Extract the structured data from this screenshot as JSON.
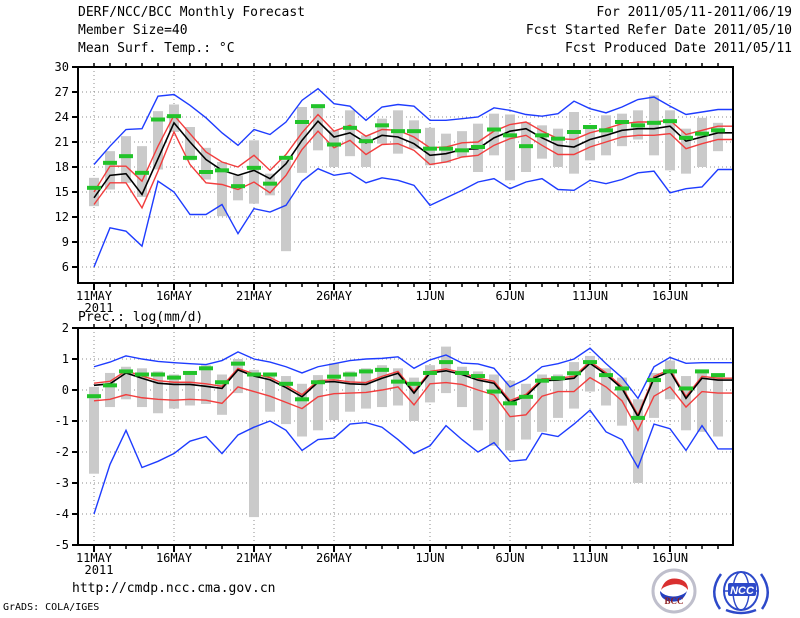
{
  "header": {
    "product_title": "DERF/NCC/BCC Monthly Forecast",
    "member_size": "Member Size=40",
    "valid_range": "For 2011/05/11-2011/06/19",
    "refer_date": "Fcst Started Refer Date 2011/05/10",
    "produced_date": "Fcst Produced Date 2011/05/11"
  },
  "footer": {
    "url": "http://cmdp.ncc.cma.gov.cn",
    "credit": "GrADS: COLA/IGES"
  },
  "logos": {
    "bcc": "BCC",
    "ncc": "NCC"
  },
  "colors": {
    "blue": "#1e3cff",
    "red": "#f23d3d",
    "black": "#000000",
    "green": "#22c32a",
    "bar": "#cacaca",
    "grid": "#8c8c8c"
  },
  "chart_data": [
    {
      "name": "mean-surface-temperature",
      "type": "line",
      "title": "Mean Surf. Temp.: °C",
      "days": 40,
      "year": "2011",
      "x_range_label": "11MAY2011 - 19JUN2011",
      "ylim": [
        30,
        4.08
      ],
      "yticks": [
        30,
        27,
        24,
        21,
        18,
        15,
        12,
        9,
        6
      ],
      "xticks": [
        {
          "pos": 0,
          "label": "11MAY"
        },
        {
          "pos": 5,
          "label": "16MAY"
        },
        {
          "pos": 10,
          "label": "21MAY"
        },
        {
          "pos": 15,
          "label": "26MAY"
        },
        {
          "pos": 21,
          "label": "1JUN"
        },
        {
          "pos": 26,
          "label": "6JUN"
        },
        {
          "pos": 31,
          "label": "11JUN"
        },
        {
          "pos": 36,
          "label": "16JUN"
        }
      ],
      "series": {
        "blue_upper": [
          18.3,
          20.5,
          22.5,
          22.6,
          26.5,
          26.7,
          25.4,
          23.9,
          22.1,
          20.6,
          22.5,
          21.9,
          23.4,
          26.0,
          27.4,
          25.6,
          25.3,
          23.6,
          25.2,
          25.5,
          25.3,
          23.6,
          23.6,
          23.8,
          24.0,
          25.1,
          24.8,
          24.3,
          24.1,
          24.4,
          25.9,
          25.0,
          24.5,
          25.2,
          26.1,
          26.4,
          25.3,
          24.3,
          24.6,
          24.9
        ],
        "red_upper": [
          15.0,
          18.1,
          18.1,
          16.3,
          20.5,
          24.2,
          22.0,
          19.8,
          18.6,
          18.0,
          19.4,
          17.6,
          19.5,
          22.1,
          24.3,
          22.3,
          23.0,
          21.7,
          22.5,
          22.4,
          21.6,
          20.3,
          20.4,
          20.9,
          21.0,
          22.3,
          23.1,
          23.4,
          22.3,
          21.4,
          21.3,
          22.1,
          22.6,
          23.2,
          23.4,
          23.4,
          23.6,
          21.9,
          22.4,
          22.9
        ],
        "mean_black": [
          14.3,
          17.0,
          17.2,
          14.7,
          19.0,
          23.3,
          21.0,
          18.9,
          17.6,
          17.0,
          17.6,
          16.6,
          18.4,
          21.2,
          23.5,
          21.6,
          22.1,
          20.9,
          21.8,
          21.6,
          20.8,
          19.4,
          19.6,
          20.1,
          20.2,
          21.5,
          22.3,
          22.6,
          21.5,
          20.6,
          20.4,
          21.3,
          21.8,
          22.4,
          22.6,
          22.6,
          22.9,
          21.1,
          21.6,
          22.1
        ],
        "red_lower": [
          13.5,
          16.1,
          16.1,
          13.1,
          17.5,
          22.2,
          18.3,
          16.1,
          15.9,
          15.3,
          16.2,
          14.9,
          17.0,
          20.1,
          22.3,
          20.3,
          21.2,
          19.5,
          20.7,
          20.8,
          20.0,
          18.3,
          18.6,
          19.2,
          19.4,
          20.6,
          21.4,
          21.8,
          20.6,
          19.5,
          19.5,
          20.4,
          21.0,
          21.6,
          21.8,
          21.8,
          22.0,
          20.2,
          20.8,
          21.3
        ],
        "blue_lower": [
          6.0,
          10.7,
          10.3,
          8.5,
          16.3,
          15.0,
          12.3,
          12.3,
          13.5,
          10.0,
          13.0,
          12.6,
          13.4,
          16.3,
          17.8,
          17.0,
          17.3,
          16.1,
          16.7,
          16.4,
          15.8,
          13.4,
          14.3,
          15.2,
          16.2,
          16.6,
          15.4,
          16.2,
          16.6,
          15.3,
          15.2,
          16.4,
          16.0,
          16.5,
          17.3,
          17.5,
          14.9,
          15.4,
          15.6,
          17.7
        ],
        "green_obs": [
          15.5,
          18.5,
          19.3,
          17.3,
          23.7,
          24.1,
          19.1,
          17.4,
          17.6,
          15.7,
          17.9,
          16.0,
          19.1,
          23.4,
          25.3,
          20.7,
          22.7,
          21.1,
          23.0,
          22.3,
          22.3,
          20.2,
          20.2,
          20.0,
          20.4,
          22.5,
          21.8,
          20.5,
          21.8,
          21.4,
          22.2,
          22.8,
          22.4,
          23.4,
          23.0,
          23.3,
          23.5,
          21.5,
          22.0,
          22.4
        ],
        "bar_hi": [
          16.7,
          19.9,
          21.7,
          20.5,
          24.7,
          25.5,
          22.8,
          20.3,
          18.6,
          17.0,
          21.2,
          17.2,
          18.8,
          25.2,
          25.5,
          22.4,
          24.8,
          21.8,
          23.8,
          24.8,
          23.6,
          22.7,
          22.0,
          22.3,
          23.2,
          24.4,
          24.3,
          23.4,
          23.0,
          22.6,
          24.6,
          22.8,
          24.2,
          24.4,
          24.8,
          26.6,
          24.8,
          22.6,
          23.9,
          23.3
        ],
        "bar_lo": [
          13.3,
          15.3,
          16.1,
          14.4,
          17.7,
          22.2,
          18.8,
          16.5,
          12.1,
          14.0,
          13.6,
          14.6,
          7.9,
          17.3,
          20.0,
          18.0,
          19.3,
          18.0,
          20.8,
          19.6,
          20.2,
          18.2,
          18.5,
          19.2,
          17.4,
          19.4,
          16.4,
          17.4,
          19.0,
          18.0,
          17.2,
          18.8,
          19.4,
          20.5,
          21.3,
          19.4,
          17.6,
          17.2,
          18.0,
          19.9
        ]
      }
    },
    {
      "name": "precipitation",
      "type": "line",
      "title": "Prec.: log(mm/d)",
      "days": 40,
      "year": "2011",
      "x_range_label": "11MAY2011 - 19JUN2011",
      "ylim": [
        2,
        -5
      ],
      "yticks": [
        2,
        1,
        0,
        -1,
        -2,
        -3,
        -4,
        -5
      ],
      "xticks": [
        {
          "pos": 0,
          "label": "11MAY"
        },
        {
          "pos": 5,
          "label": "16MAY"
        },
        {
          "pos": 10,
          "label": "21MAY"
        },
        {
          "pos": 15,
          "label": "26MAY"
        },
        {
          "pos": 21,
          "label": "1JUN"
        },
        {
          "pos": 26,
          "label": "6JUN"
        },
        {
          "pos": 31,
          "label": "11JUN"
        },
        {
          "pos": 36,
          "label": "16JUN"
        }
      ],
      "series": {
        "blue_upper": [
          0.75,
          0.9,
          1.1,
          1.0,
          0.92,
          0.88,
          0.85,
          0.82,
          0.95,
          1.23,
          1.0,
          0.9,
          0.75,
          0.55,
          0.75,
          0.85,
          0.95,
          1.0,
          1.02,
          1.07,
          0.7,
          0.97,
          1.13,
          0.87,
          0.84,
          0.7,
          0.1,
          0.35,
          0.75,
          0.85,
          1.0,
          1.35,
          0.85,
          0.4,
          -0.27,
          0.75,
          1.05,
          0.86,
          0.88,
          0.88
        ],
        "red_upper": [
          0.22,
          0.28,
          0.62,
          0.45,
          0.3,
          0.25,
          0.25,
          0.2,
          0.12,
          0.7,
          0.52,
          0.4,
          0.15,
          -0.15,
          0.3,
          0.33,
          0.26,
          0.24,
          0.44,
          0.6,
          -0.04,
          0.6,
          0.68,
          0.56,
          0.38,
          0.28,
          -0.34,
          -0.14,
          0.36,
          0.38,
          0.44,
          0.92,
          0.56,
          0.11,
          -0.8,
          0.44,
          0.66,
          -0.21,
          0.44,
          0.38
        ],
        "mean_black": [
          0.15,
          0.2,
          0.55,
          0.38,
          0.22,
          0.18,
          0.18,
          0.12,
          0.05,
          0.65,
          0.45,
          0.33,
          0.08,
          -0.22,
          0.25,
          0.27,
          0.2,
          0.18,
          0.38,
          0.54,
          -0.1,
          0.55,
          0.62,
          0.5,
          0.32,
          0.22,
          -0.4,
          -0.2,
          0.3,
          0.32,
          0.38,
          0.86,
          0.5,
          0.05,
          -0.86,
          0.38,
          0.6,
          -0.27,
          0.38,
          0.32
        ],
        "red_lower": [
          -0.35,
          -0.3,
          -0.15,
          -0.25,
          -0.3,
          -0.33,
          -0.3,
          -0.33,
          -0.43,
          0.1,
          -0.05,
          -0.2,
          -0.4,
          -0.6,
          -0.22,
          -0.12,
          -0.1,
          -0.08,
          0.0,
          0.1,
          -0.48,
          0.2,
          0.24,
          0.18,
          0.0,
          -0.16,
          -0.86,
          -0.8,
          -0.2,
          -0.05,
          -0.05,
          0.4,
          0.1,
          -0.35,
          -1.3,
          -0.2,
          0.1,
          -0.55,
          -0.05,
          -0.1
        ],
        "blue_lower": [
          -4.0,
          -2.4,
          -1.3,
          -2.5,
          -2.3,
          -2.05,
          -1.65,
          -1.5,
          -2.05,
          -1.45,
          -1.2,
          -1.0,
          -1.3,
          -1.95,
          -1.6,
          -1.55,
          -1.1,
          -1.05,
          -1.2,
          -1.6,
          -2.05,
          -1.8,
          -1.15,
          -1.6,
          -2.0,
          -1.7,
          -2.3,
          -2.25,
          -1.4,
          -1.5,
          -1.1,
          -0.65,
          -1.35,
          -1.6,
          -2.5,
          -1.1,
          -1.25,
          -1.95,
          -1.15,
          -1.9
        ],
        "green_obs": [
          -0.2,
          0.15,
          0.6,
          0.5,
          0.5,
          0.4,
          0.55,
          0.7,
          0.25,
          0.85,
          0.5,
          0.5,
          0.2,
          -0.3,
          0.25,
          0.43,
          0.5,
          0.6,
          0.65,
          0.27,
          0.2,
          0.55,
          0.9,
          0.55,
          0.45,
          -0.05,
          -0.43,
          -0.22,
          0.3,
          0.38,
          0.54,
          0.9,
          0.48,
          0.05,
          -0.9,
          0.32,
          0.6,
          0.05,
          0.6,
          0.48
        ],
        "bar_hi": [
          0.1,
          0.55,
          0.75,
          0.7,
          0.6,
          0.5,
          0.6,
          0.8,
          0.5,
          1.0,
          0.65,
          0.5,
          0.45,
          0.2,
          0.48,
          0.86,
          0.6,
          0.7,
          0.8,
          0.7,
          0.4,
          0.8,
          1.4,
          0.75,
          0.6,
          0.5,
          0.3,
          0.2,
          0.5,
          0.5,
          0.9,
          1.1,
          0.7,
          0.4,
          -0.3,
          0.55,
          0.95,
          0.45,
          0.6,
          0.5
        ],
        "bar_lo": [
          -2.7,
          -0.55,
          -0.3,
          -0.55,
          -0.75,
          -0.6,
          -0.5,
          -0.45,
          -0.8,
          -0.1,
          -4.1,
          -0.7,
          -1.1,
          -1.5,
          -1.3,
          -0.97,
          -0.7,
          -0.6,
          -0.55,
          -0.5,
          -1.0,
          -0.4,
          -0.1,
          -0.55,
          -1.3,
          -1.8,
          -1.95,
          -1.6,
          -1.35,
          -0.9,
          -0.6,
          -0.05,
          -0.5,
          -1.15,
          -3.0,
          -0.9,
          -0.3,
          -1.3,
          -1.35,
          -1.5
        ]
      }
    }
  ]
}
